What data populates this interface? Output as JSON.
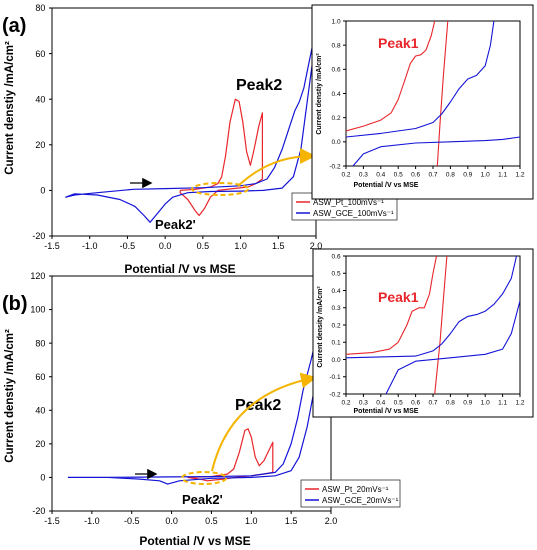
{
  "chart_data": [
    {
      "panel_label": "(a)",
      "type": "line",
      "xlabel": "Potential /V vs MSE",
      "ylabel": "Current denstiy /mA/cm²",
      "xlim": [
        -1.5,
        2.0
      ],
      "ylim": [
        -20,
        80
      ],
      "xticks": [
        "-1.5",
        "-1.0",
        "-0.5",
        "0.0",
        "0.5",
        "1.0",
        "1.5",
        "2.0"
      ],
      "yticks": [
        "-20",
        "0",
        "20",
        "40",
        "60",
        "80"
      ],
      "annotations": [
        "Peak2",
        "Peak2'"
      ],
      "legend": "bottom-right",
      "series": [
        {
          "name": "ASW_Pt_100mVs⁻¹",
          "color": "#e8262b",
          "points": [
            [
              0.2,
              0
            ],
            [
              0.4,
              0.5
            ],
            [
              0.6,
              1.5
            ],
            [
              0.7,
              3
            ],
            [
              0.75,
              6
            ],
            [
              0.8,
              15
            ],
            [
              0.86,
              30
            ],
            [
              0.93,
              40
            ],
            [
              0.98,
              39
            ],
            [
              1.03,
              30
            ],
            [
              1.08,
              17
            ],
            [
              1.13,
              11
            ],
            [
              1.18,
              18
            ],
            [
              1.24,
              28
            ],
            [
              1.29,
              34
            ],
            [
              1.29,
              5
            ],
            [
              1.2,
              3
            ],
            [
              1.1,
              1.5
            ],
            [
              0.9,
              0.8
            ],
            [
              0.7,
              0
            ],
            [
              0.6,
              -3
            ],
            [
              0.52,
              -8
            ],
            [
              0.45,
              -11
            ],
            [
              0.4,
              -9
            ],
            [
              0.3,
              -4
            ],
            [
              0.2,
              -1
            ],
            [
              0.2,
              0
            ]
          ]
        },
        {
          "name": "ASW_GCE_100mVs⁻¹",
          "color": "#1414d8",
          "points": [
            [
              -0.42,
              0.5
            ],
            [
              0.0,
              0.8
            ],
            [
              0.5,
              1.2
            ],
            [
              1.0,
              2
            ],
            [
              1.2,
              3
            ],
            [
              1.35,
              5
            ],
            [
              1.45,
              10
            ],
            [
              1.55,
              18
            ],
            [
              1.65,
              28
            ],
            [
              1.72,
              35
            ],
            [
              1.78,
              39
            ],
            [
              1.84,
              45
            ],
            [
              1.9,
              55
            ],
            [
              1.97,
              66
            ],
            [
              2.0,
              71
            ],
            [
              1.96,
              58
            ],
            [
              1.88,
              38
            ],
            [
              1.8,
              18
            ],
            [
              1.7,
              6
            ],
            [
              1.55,
              1
            ],
            [
              1.3,
              0
            ],
            [
              1.0,
              -0.3
            ],
            [
              0.6,
              -0.5
            ],
            [
              0.3,
              -1
            ],
            [
              0.1,
              -3
            ],
            [
              0.0,
              -6
            ],
            [
              -0.1,
              -10
            ],
            [
              -0.2,
              -14
            ],
            [
              -0.28,
              -11
            ],
            [
              -0.4,
              -7
            ],
            [
              -0.6,
              -4
            ],
            [
              -0.9,
              -2
            ],
            [
              -1.2,
              -1.5
            ],
            [
              -1.32,
              -3
            ],
            [
              -1.2,
              -2
            ],
            [
              -0.9,
              -1
            ],
            [
              -0.42,
              0.5
            ]
          ]
        }
      ]
    },
    {
      "panel_label": "",
      "type": "line",
      "xlabel": "Potential /V vs MSE",
      "ylabel": "Current denstiy /mA/cm²",
      "xlim": [
        0.2,
        1.2
      ],
      "ylim": [
        -0.2,
        1.0
      ],
      "xticks": [
        "0.2",
        "0.3",
        "0.4",
        "0.5",
        "0.6",
        "0.7",
        "0.8",
        "0.9",
        "1.0",
        "1.1",
        "1.2"
      ],
      "yticks": [
        "-0.2",
        "0.0",
        "0.2",
        "0.4",
        "0.6",
        "0.8",
        "1.0"
      ],
      "annotations": [
        "Peak1"
      ],
      "series": [
        {
          "name": "",
          "color": "#e8262b",
          "segments": [
            [
              [
                0.2,
                0.09
              ],
              [
                0.3,
                0.13
              ],
              [
                0.4,
                0.18
              ],
              [
                0.46,
                0.24
              ],
              [
                0.5,
                0.35
              ],
              [
                0.54,
                0.52
              ],
              [
                0.57,
                0.65
              ],
              [
                0.6,
                0.71
              ],
              [
                0.63,
                0.72
              ],
              [
                0.66,
                0.76
              ],
              [
                0.69,
                0.88
              ],
              [
                0.71,
                1.0
              ]
            ],
            [
              [
                0.725,
                -0.2
              ],
              [
                0.74,
                0.15
              ],
              [
                0.76,
                0.55
              ],
              [
                0.785,
                1.0
              ]
            ]
          ]
        },
        {
          "name": "",
          "color": "#1414d8",
          "segments": [
            [
              [
                0.2,
                0.04
              ],
              [
                0.4,
                0.07
              ],
              [
                0.6,
                0.11
              ],
              [
                0.7,
                0.16
              ],
              [
                0.75,
                0.23
              ],
              [
                0.8,
                0.33
              ],
              [
                0.85,
                0.44
              ],
              [
                0.9,
                0.52
              ],
              [
                0.95,
                0.55
              ],
              [
                1.0,
                0.63
              ],
              [
                1.03,
                0.8
              ],
              [
                1.05,
                1.0
              ]
            ],
            [
              [
                0.24,
                -0.2
              ],
              [
                0.3,
                -0.1
              ],
              [
                0.4,
                -0.04
              ],
              [
                0.6,
                -0.01
              ],
              [
                0.8,
                0.0
              ],
              [
                1.0,
                0.01
              ],
              [
                1.1,
                0.02
              ],
              [
                1.2,
                0.04
              ]
            ]
          ]
        }
      ]
    },
    {
      "panel_label": "(b)",
      "type": "line",
      "xlabel": "Potential /V vs MSE",
      "ylabel": "Current denstiy /mA/cm²",
      "xlim": [
        -1.5,
        2.0
      ],
      "ylim": [
        -20,
        120
      ],
      "xticks": [
        "-1.5",
        "-1.0",
        "-0.5",
        "0.0",
        "0.5",
        "1.0",
        "1.5",
        "2.0"
      ],
      "yticks": [
        "-20",
        "0",
        "20",
        "40",
        "60",
        "80",
        "100",
        "120"
      ],
      "annotations": [
        "Peak2",
        "Peak2'"
      ],
      "legend": "bottom-right",
      "series": [
        {
          "name": "ASW_Pt_20mVs⁻¹",
          "color": "#e8262b",
          "points": [
            [
              0.2,
              0
            ],
            [
              0.5,
              0.5
            ],
            [
              0.7,
              2
            ],
            [
              0.78,
              5
            ],
            [
              0.85,
              15
            ],
            [
              0.92,
              28
            ],
            [
              0.96,
              29
            ],
            [
              1.0,
              24
            ],
            [
              1.05,
              12
            ],
            [
              1.1,
              7
            ],
            [
              1.16,
              10
            ],
            [
              1.22,
              16
            ],
            [
              1.27,
              21
            ],
            [
              1.27,
              3
            ],
            [
              1.15,
              2
            ],
            [
              1.0,
              1
            ],
            [
              0.8,
              0
            ],
            [
              0.65,
              -1
            ],
            [
              0.55,
              -1.5
            ],
            [
              0.45,
              -2
            ],
            [
              0.35,
              -1
            ],
            [
              0.2,
              0
            ]
          ]
        },
        {
          "name": "ASW_GCE_20mVs⁻¹",
          "color": "#1414d8",
          "points": [
            [
              -1.3,
              0
            ],
            [
              -0.8,
              0
            ],
            [
              0.0,
              0.3
            ],
            [
              0.5,
              0.5
            ],
            [
              1.0,
              1
            ],
            [
              1.3,
              3
            ],
            [
              1.4,
              8
            ],
            [
              1.5,
              20
            ],
            [
              1.58,
              35
            ],
            [
              1.65,
              52
            ],
            [
              1.75,
              70
            ],
            [
              1.85,
              90
            ],
            [
              1.95,
              110
            ],
            [
              1.98,
              118
            ],
            [
              1.97,
              100
            ],
            [
              1.9,
              80
            ],
            [
              1.8,
              55
            ],
            [
              1.7,
              30
            ],
            [
              1.6,
              12
            ],
            [
              1.5,
              4
            ],
            [
              1.3,
              1
            ],
            [
              1.0,
              0
            ],
            [
              0.5,
              -0.5
            ],
            [
              0.1,
              -2
            ],
            [
              -0.05,
              -4
            ],
            [
              -0.15,
              -2
            ],
            [
              -0.4,
              -1
            ],
            [
              -0.8,
              0
            ],
            [
              -1.3,
              0
            ]
          ]
        }
      ]
    },
    {
      "panel_label": "",
      "type": "line",
      "xlabel": "Potential /V vs MSE",
      "ylabel": "Current density /mA/cm²",
      "xlim": [
        0.2,
        1.2
      ],
      "ylim": [
        -0.2,
        0.6
      ],
      "xticks": [
        "0.2",
        "0.3",
        "0.4",
        "0.5",
        "0.6",
        "0.7",
        "0.8",
        "0.9",
        "1.0",
        "1.1",
        "1.2"
      ],
      "yticks": [
        "-0.2",
        "-0.1",
        "0.0",
        "0.1",
        "0.2",
        "0.3",
        "0.4",
        "0.5",
        "0.6"
      ],
      "annotations": [
        "Peak1"
      ],
      "series": [
        {
          "name": "",
          "color": "#e8262b",
          "segments": [
            [
              [
                0.2,
                0.03
              ],
              [
                0.35,
                0.04
              ],
              [
                0.45,
                0.06
              ],
              [
                0.5,
                0.1
              ],
              [
                0.55,
                0.2
              ],
              [
                0.58,
                0.28
              ],
              [
                0.62,
                0.3
              ],
              [
                0.65,
                0.3
              ],
              [
                0.68,
                0.38
              ],
              [
                0.7,
                0.5
              ],
              [
                0.72,
                0.6
              ]
            ],
            [
              [
                0.71,
                -0.2
              ],
              [
                0.74,
                0.1
              ],
              [
                0.76,
                0.35
              ],
              [
                0.78,
                0.6
              ]
            ]
          ]
        },
        {
          "name": "",
          "color": "#1414d8",
          "segments": [
            [
              [
                0.2,
                0.01
              ],
              [
                0.4,
                0.015
              ],
              [
                0.6,
                0.02
              ],
              [
                0.7,
                0.05
              ],
              [
                0.75,
                0.09
              ],
              [
                0.8,
                0.15
              ],
              [
                0.85,
                0.22
              ],
              [
                0.9,
                0.25
              ],
              [
                0.95,
                0.26
              ],
              [
                1.0,
                0.28
              ],
              [
                1.05,
                0.32
              ],
              [
                1.1,
                0.38
              ],
              [
                1.15,
                0.47
              ],
              [
                1.18,
                0.6
              ]
            ],
            [
              [
                0.43,
                -0.2
              ],
              [
                0.5,
                -0.06
              ],
              [
                0.6,
                -0.01
              ],
              [
                0.8,
                0.01
              ],
              [
                1.0,
                0.03
              ],
              [
                1.1,
                0.06
              ],
              [
                1.15,
                0.15
              ],
              [
                1.2,
                0.34
              ]
            ]
          ]
        }
      ]
    }
  ]
}
